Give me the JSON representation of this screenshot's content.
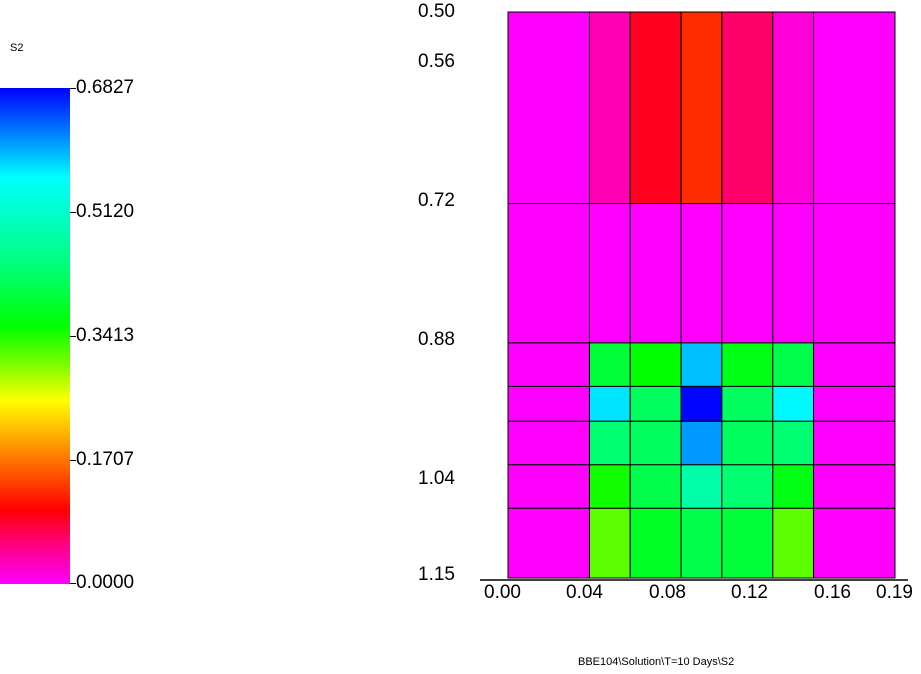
{
  "legend": {
    "title": "S2",
    "ticks": [
      "0.6827",
      "0.5120",
      "0.3413",
      "0.1707",
      "0.0000"
    ],
    "min": 0.0,
    "max": 0.6827
  },
  "caption": "BBE104\\Solution\\T=10 Days\\S2",
  "chart_data": {
    "type": "heatmap",
    "title": "",
    "xlabel": "",
    "ylabel": "",
    "x_ticks": [
      "0.00",
      "0.04",
      "0.08",
      "0.12",
      "0.16",
      "0.19"
    ],
    "y_ticks": [
      "0.50",
      "0.56",
      "0.72",
      "0.88",
      "1.04",
      "1.15"
    ],
    "xlim": [
      0.0,
      0.19
    ],
    "ylim": [
      0.5,
      1.15
    ],
    "y_inverted": true,
    "x_edges": [
      0.0,
      0.04,
      0.06,
      0.085,
      0.105,
      0.13,
      0.15,
      0.19
    ],
    "y_edges": [
      0.5,
      0.72,
      0.88,
      0.93,
      0.97,
      1.02,
      1.07,
      1.15
    ],
    "values": [
      [
        0.0,
        0.04,
        0.12,
        0.16,
        0.08,
        0.02,
        0.0
      ],
      [
        0.0,
        0.0,
        0.0,
        0.0,
        0.0,
        0.0,
        0.0
      ],
      [
        0.0,
        0.44,
        0.41,
        0.58,
        0.42,
        0.45,
        0.0
      ],
      [
        0.0,
        0.56,
        0.46,
        0.68,
        0.46,
        0.55,
        0.0
      ],
      [
        0.0,
        0.47,
        0.46,
        0.6,
        0.46,
        0.47,
        0.0
      ],
      [
        0.0,
        0.4,
        0.45,
        0.5,
        0.47,
        0.42,
        0.0
      ],
      [
        0.0,
        0.36,
        0.43,
        0.45,
        0.44,
        0.36,
        0.0
      ]
    ],
    "colormap": [
      "#ff00ff",
      "#ff0000",
      "#ffff00",
      "#00ff00",
      "#00ffff",
      "#0000ff"
    ]
  }
}
